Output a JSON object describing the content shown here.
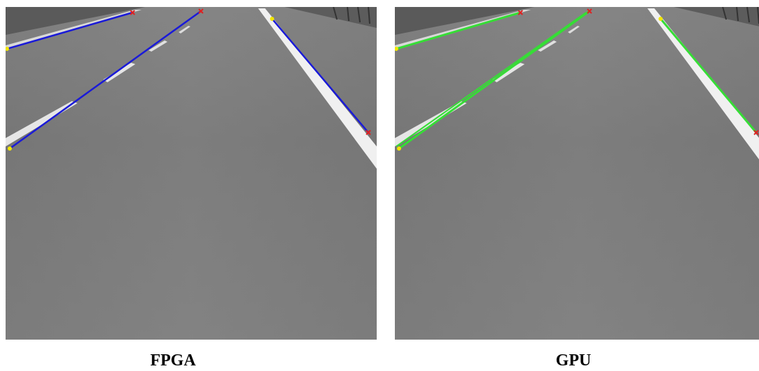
{
  "panels": [
    {
      "caption": "FPGA"
    },
    {
      "caption": "GPU"
    }
  ]
}
